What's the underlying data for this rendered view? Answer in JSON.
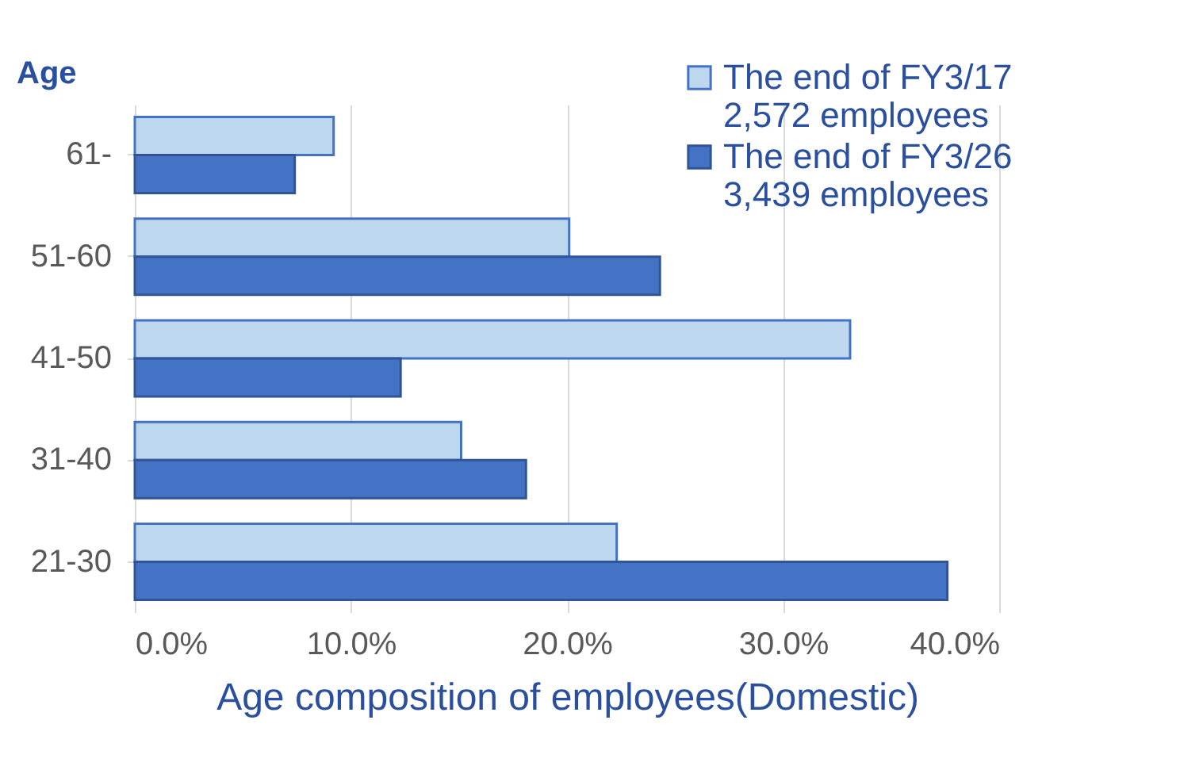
{
  "chart_data": {
    "type": "bar",
    "orientation": "horizontal",
    "xlabel": "Age composition of employees(Domestic)",
    "ylabel": "Age",
    "categories": [
      "61-",
      "51-60",
      "41-50",
      "31-40",
      "21-30"
    ],
    "series": [
      {
        "name": "The end of FY3/17\n2,572 employees",
        "color": "#bdd7ee",
        "values": [
          9.2,
          20.1,
          33.1,
          15.1,
          22.3
        ]
      },
      {
        "name": "The end of FY3/26\n3,439 employees",
        "color": "#4472c4",
        "values": [
          7.4,
          24.3,
          12.3,
          18.1,
          37.6
        ]
      }
    ],
    "xlim": [
      0,
      40
    ],
    "xticks": [
      {
        "value": 0,
        "label": "0.0%"
      },
      {
        "value": 10,
        "label": "10.0%"
      },
      {
        "value": 20,
        "label": "20.0%"
      },
      {
        "value": 30,
        "label": "30.0%"
      },
      {
        "value": 40,
        "label": "40.0%"
      }
    ],
    "grid": "x",
    "legend": "top right"
  }
}
